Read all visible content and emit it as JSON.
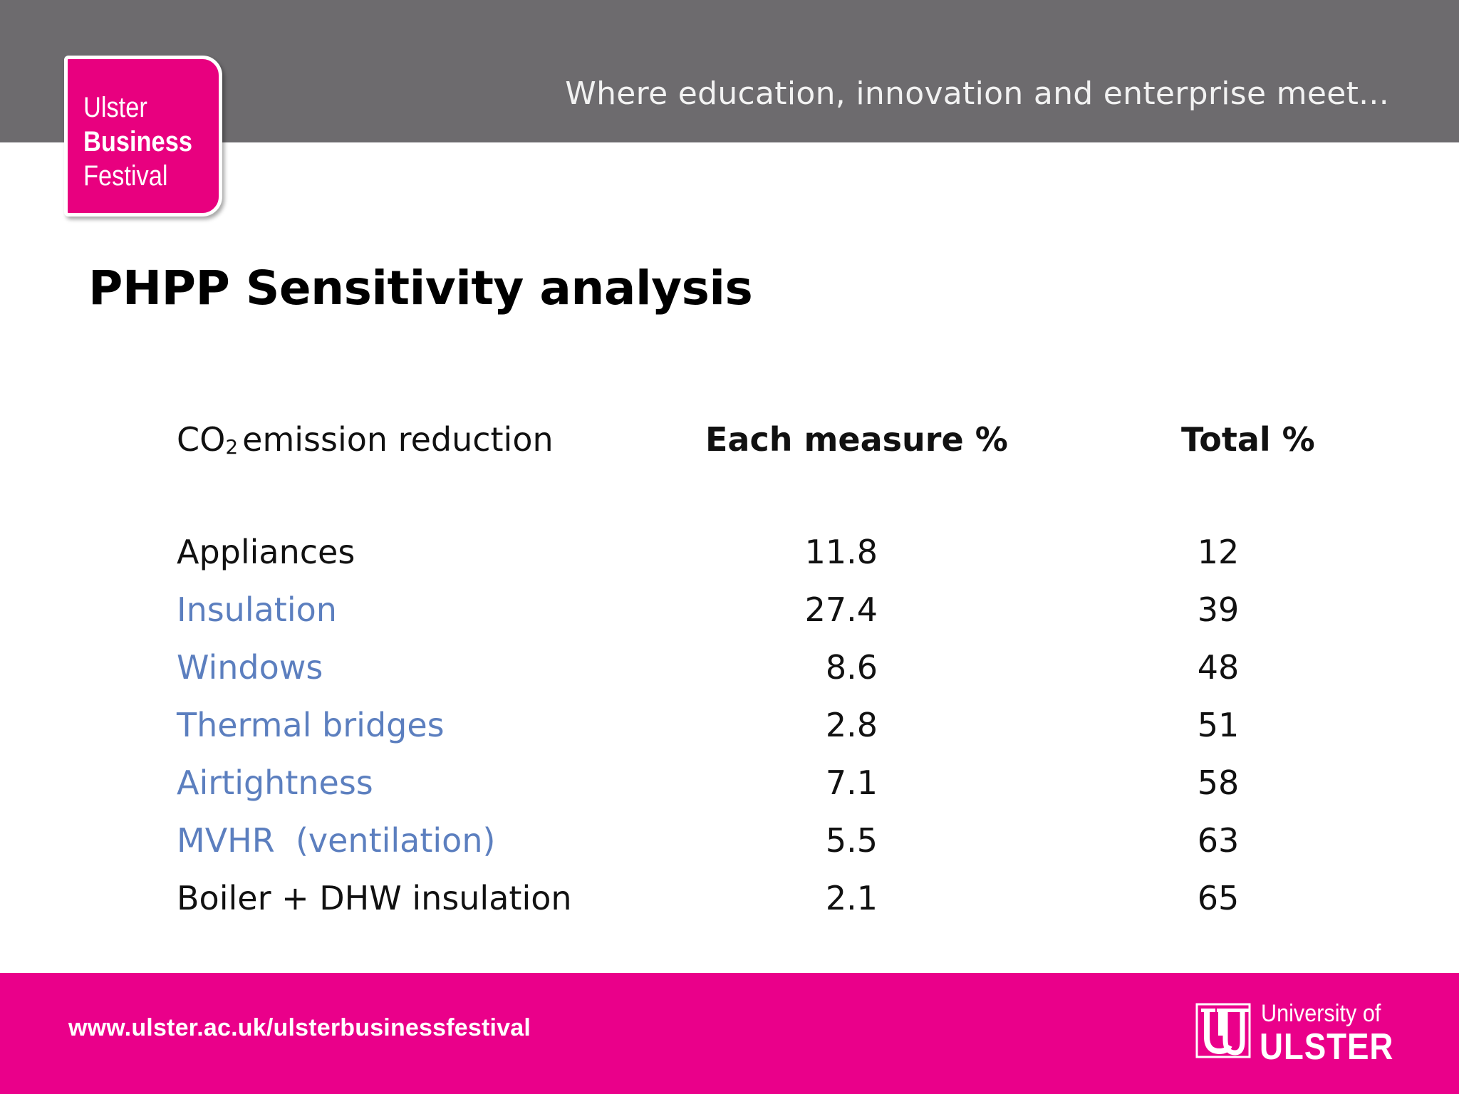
{
  "header": {
    "tagline": "Where education, innovation and enterprise meet...",
    "logo": {
      "line1": "Ulster",
      "line2": "Business",
      "line3": "Festival"
    }
  },
  "title": "PHPP Sensitivity analysis",
  "table": {
    "headers": {
      "col1_prefix": "CO",
      "col1_sub": "2",
      "col1_rest": "emission reduction",
      "col2": "Each measure %",
      "col3": "Total %"
    },
    "rows": [
      {
        "name": "Appliances",
        "each": "11.8",
        "total": "12"
      },
      {
        "name": "Insulation",
        "each": "27.4",
        "total": "39"
      },
      {
        "name": "Windows",
        "each": "8.6",
        "total": "48"
      },
      {
        "name": "Thermal bridges",
        "each": "2.8",
        "total": "51"
      },
      {
        "name": "Airtightness",
        "each": "7.1",
        "total": "58"
      },
      {
        "name": "MVHR  (ventilation)",
        "each": "5.5",
        "total": "63"
      },
      {
        "name": "Boiler + DHW insulation",
        "each": "2.1",
        "total": "65"
      }
    ]
  },
  "footer": {
    "url": "www.ulster.ac.uk/ulsterbusinessfestival",
    "university_line1": "University of",
    "university_line2": "ULSTER"
  },
  "colors": {
    "top_band": "#6d6b6e",
    "brand_pink": "#e8007f",
    "link_blue": "#5c7fbf"
  }
}
